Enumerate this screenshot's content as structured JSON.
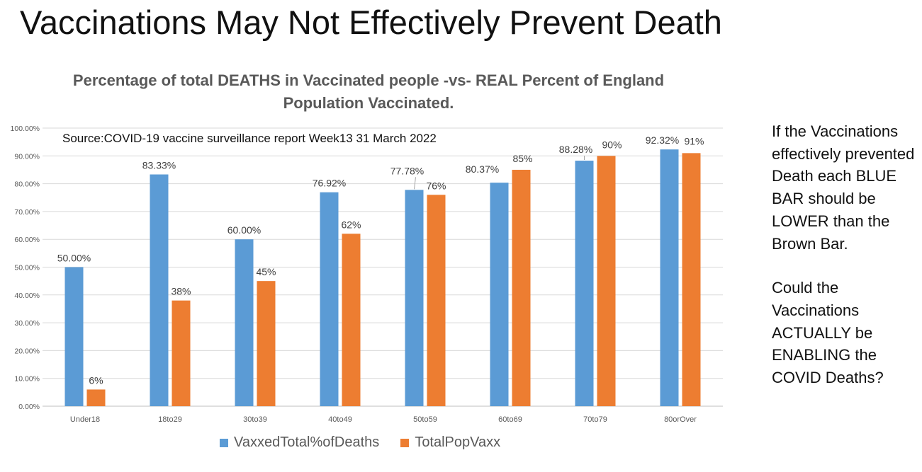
{
  "slide": {
    "title": "Vaccinations May Not Effectively Prevent Death",
    "side_note": {
      "paragraph1": "If the Vaccinations effectively prevented Death each BLUE BAR should be LOWER than the Brown Bar.",
      "paragraph2": "Could the Vaccinations ACTUALLY be ENABLING the COVID Deaths?"
    }
  },
  "chart_data": {
    "type": "bar",
    "title": "Percentage of total DEATHS in Vaccinated people -vs-  REAL Percent of England Population Vaccinated.",
    "annotation": "Source:COVID-19 vaccine surveillance report Week13  31 March 2022",
    "categories": [
      "Under18",
      "18to29",
      "30to39",
      "40to49",
      "50to59",
      "60to69",
      "70to79",
      "80orOver"
    ],
    "series": [
      {
        "name": "VaxxedTotal%ofDeaths",
        "color": "#5B9BD5",
        "values": [
          50.0,
          83.33,
          60.0,
          76.92,
          77.78,
          80.37,
          88.28,
          92.32
        ],
        "labels": [
          "50.00%",
          "83.33%",
          "60.00%",
          "76.92%",
          "77.78%",
          "80.37%",
          "88.28%",
          "92.32%"
        ]
      },
      {
        "name": "TotalPopVaxx",
        "color": "#ED7D31",
        "values": [
          6,
          38,
          45,
          62,
          76,
          85,
          90,
          91
        ],
        "labels": [
          "6%",
          "38%",
          "45%",
          "62%",
          "76%",
          "85%",
          "90%",
          "91%"
        ]
      }
    ],
    "ylim": [
      0,
      100
    ],
    "yticks": [
      0,
      10,
      20,
      30,
      40,
      50,
      60,
      70,
      80,
      90,
      100
    ],
    "ytick_labels": [
      "0.00%",
      "10.00%",
      "20.00%",
      "30.00%",
      "40.00%",
      "50.00%",
      "60.00%",
      "70.00%",
      "80.00%",
      "90.00%",
      "100.00%"
    ],
    "grid": true,
    "legend": "bottom"
  }
}
